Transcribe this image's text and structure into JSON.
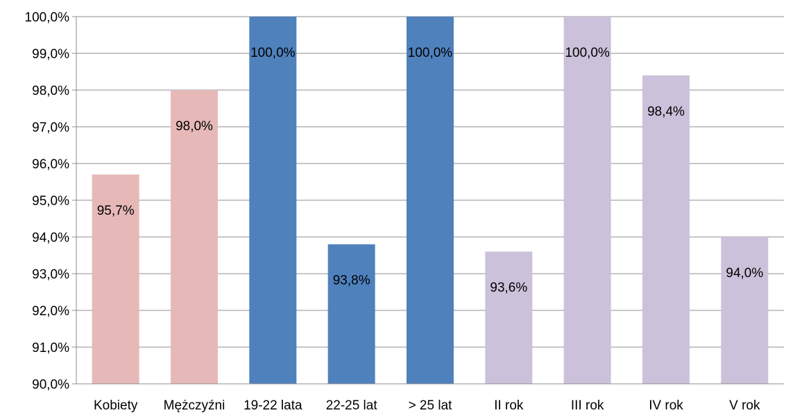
{
  "chart_data": {
    "type": "bar",
    "title": "",
    "xlabel": "",
    "ylabel": "",
    "categories": [
      "Kobiety",
      "Mężczyźni",
      "19-22 lata",
      "22-25 lat",
      "> 25 lat",
      "II rok",
      "III rok",
      "IV rok",
      "V rok"
    ],
    "values": [
      95.7,
      98.0,
      100.0,
      93.8,
      100.0,
      93.6,
      100.0,
      98.4,
      94.0
    ],
    "data_labels": [
      "95,7%",
      "98,0%",
      "100,0%",
      "93,8%",
      "100,0%",
      "93,6%",
      "100,0%",
      "98,4%",
      "94,0%"
    ],
    "colors": [
      "#e6b9b8",
      "#e6b9b8",
      "#4f81bd",
      "#4f81bd",
      "#4f81bd",
      "#ccc1da",
      "#ccc1da",
      "#ccc1da",
      "#ccc1da"
    ],
    "ylim": [
      90,
      100
    ],
    "yticks": [
      90,
      91,
      92,
      93,
      94,
      95,
      96,
      97,
      98,
      99,
      100
    ],
    "ytick_labels": [
      "90,0%",
      "91,0%",
      "92,0%",
      "93,0%",
      "94,0%",
      "95,0%",
      "96,0%",
      "97,0%",
      "98,0%",
      "99,0%",
      "100,0%"
    ],
    "grid": true,
    "legend": "none"
  }
}
